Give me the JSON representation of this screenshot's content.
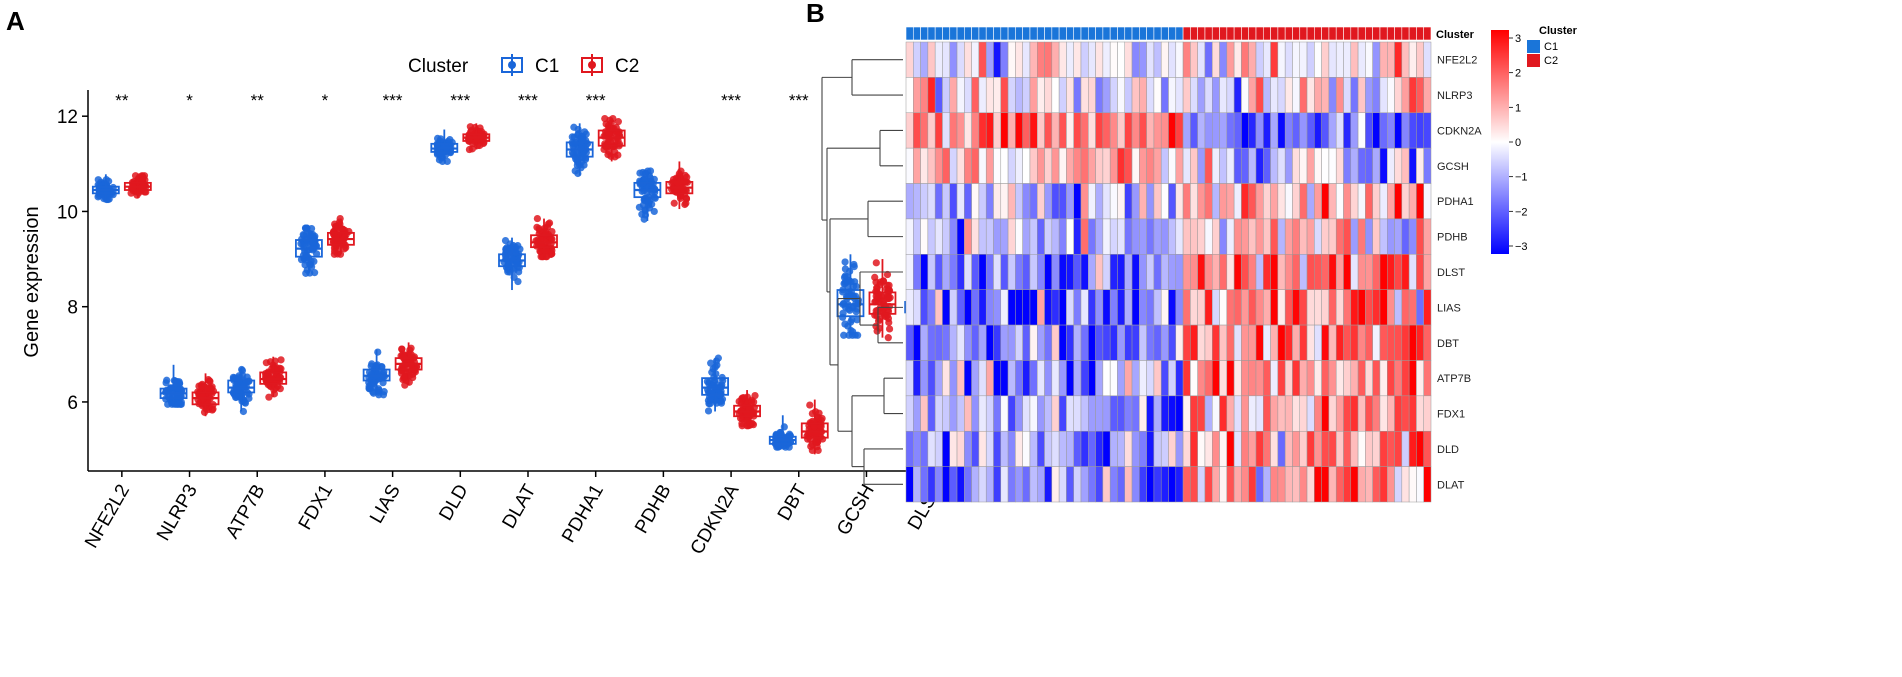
{
  "chart_data": [
    {
      "type": "box",
      "panel_label": "A",
      "ylabel": "Gene expression",
      "xlabel": "",
      "ylim": [
        4.55,
        12.55
      ],
      "yticks": [
        6,
        8,
        10,
        12
      ],
      "legend": {
        "title": "Cluster",
        "position": "top",
        "entries": [
          "C1",
          "C2"
        ]
      },
      "genes": [
        "NFE2L2",
        "NLRP3",
        "ATP7B",
        "FDX1",
        "LIAS",
        "DLD",
        "DLAT",
        "PDHA1",
        "PDHB",
        "CDKN2A",
        "DBT",
        "GCSH",
        "DLST"
      ],
      "significance": [
        "**",
        "*",
        "**",
        "*",
        "***",
        "***",
        "***",
        "***",
        "",
        "***",
        "***",
        "",
        "***"
      ],
      "series": [
        {
          "name": "C1",
          "color": "#1a66d9",
          "stats": [
            [
              10.25,
              10.38,
              10.45,
              10.52,
              10.78
            ],
            [
              5.95,
              6.08,
              6.18,
              6.28,
              6.78
            ],
            [
              5.8,
              6.2,
              6.3,
              6.45,
              6.72
            ],
            [
              8.7,
              9.05,
              9.22,
              9.4,
              9.65
            ],
            [
              6.15,
              6.45,
              6.55,
              6.68,
              7.1
            ],
            [
              11.05,
              11.25,
              11.32,
              11.42,
              11.72
            ],
            [
              8.35,
              8.85,
              8.97,
              9.1,
              9.45
            ],
            [
              10.75,
              11.15,
              11.3,
              11.45,
              11.85
            ],
            [
              9.8,
              10.3,
              10.45,
              10.6,
              10.85
            ],
            [
              5.8,
              6.15,
              6.3,
              6.5,
              6.92
            ],
            [
              5.05,
              5.12,
              5.2,
              5.27,
              5.72
            ],
            [
              7.4,
              7.8,
              8.05,
              8.35,
              9.1
            ],
            [
              7.6,
              7.88,
              8.0,
              8.1,
              8.6
            ]
          ]
        },
        {
          "name": "C2",
          "color": "#e0181f",
          "stats": [
            [
              10.28,
              10.45,
              10.52,
              10.6,
              10.75
            ],
            [
              5.7,
              5.95,
              6.08,
              6.2,
              6.6
            ],
            [
              6.1,
              6.38,
              6.48,
              6.62,
              6.95
            ],
            [
              9.1,
              9.3,
              9.42,
              9.55,
              9.85
            ],
            [
              6.35,
              6.68,
              6.8,
              6.92,
              7.25
            ],
            [
              11.3,
              11.48,
              11.55,
              11.62,
              11.85
            ],
            [
              9.05,
              9.25,
              9.35,
              9.5,
              9.85
            ],
            [
              11.05,
              11.38,
              11.55,
              11.7,
              11.95
            ],
            [
              10.05,
              10.38,
              10.5,
              10.62,
              11.05
            ],
            [
              5.5,
              5.7,
              5.8,
              5.92,
              6.25
            ],
            [
              4.9,
              5.25,
              5.38,
              5.55,
              6.05
            ],
            [
              7.35,
              7.85,
              8.05,
              8.3,
              9.0
            ],
            [
              7.8,
              8.12,
              8.2,
              8.32,
              8.65
            ]
          ]
        }
      ]
    },
    {
      "type": "heatmap",
      "panel_label": "B",
      "rows": [
        "NFE2L2",
        "NLRP3",
        "CDKN2A",
        "GCSH",
        "PDHA1",
        "PDHB",
        "DLST",
        "LIAS",
        "DBT",
        "ATP7B",
        "FDX1",
        "DLD",
        "DLAT"
      ],
      "column_groups": [
        {
          "name": "C1",
          "count": 38,
          "color": "#1a75d9"
        },
        {
          "name": "C2",
          "count": 34,
          "color": "#e0181f"
        }
      ],
      "annotation_label": "Cluster",
      "colorbar": {
        "min": -3,
        "max": 3,
        "ticks": [
          "3",
          "2",
          "1",
          "0",
          "−1",
          "−2",
          "−3"
        ],
        "low_color": "#0000ff",
        "mid_color": "#ffffff",
        "high_color": "#ff0000"
      },
      "legend": {
        "title": "Cluster",
        "entries": [
          "C1",
          "C2"
        ]
      },
      "row_trend": {
        "NFE2L2": [
          0,
          0.3
        ],
        "NLRP3": [
          0,
          0
        ],
        "CDKN2A": [
          0.9,
          -1.0
        ],
        "GCSH": [
          0.5,
          -0.4
        ],
        "PDHA1": [
          -0.4,
          0.5
        ],
        "PDHB": [
          -0.2,
          0.4
        ],
        "DLST": [
          -1.0,
          1.0
        ],
        "LIAS": [
          -1.0,
          1.0
        ],
        "DBT": [
          -0.9,
          0.9
        ],
        "ATP7B": [
          -0.7,
          0.8
        ],
        "FDX1": [
          -0.7,
          0.8
        ],
        "DLD": [
          -0.7,
          0.8
        ],
        "DLAT": [
          -1.0,
          0.9
        ]
      }
    }
  ]
}
